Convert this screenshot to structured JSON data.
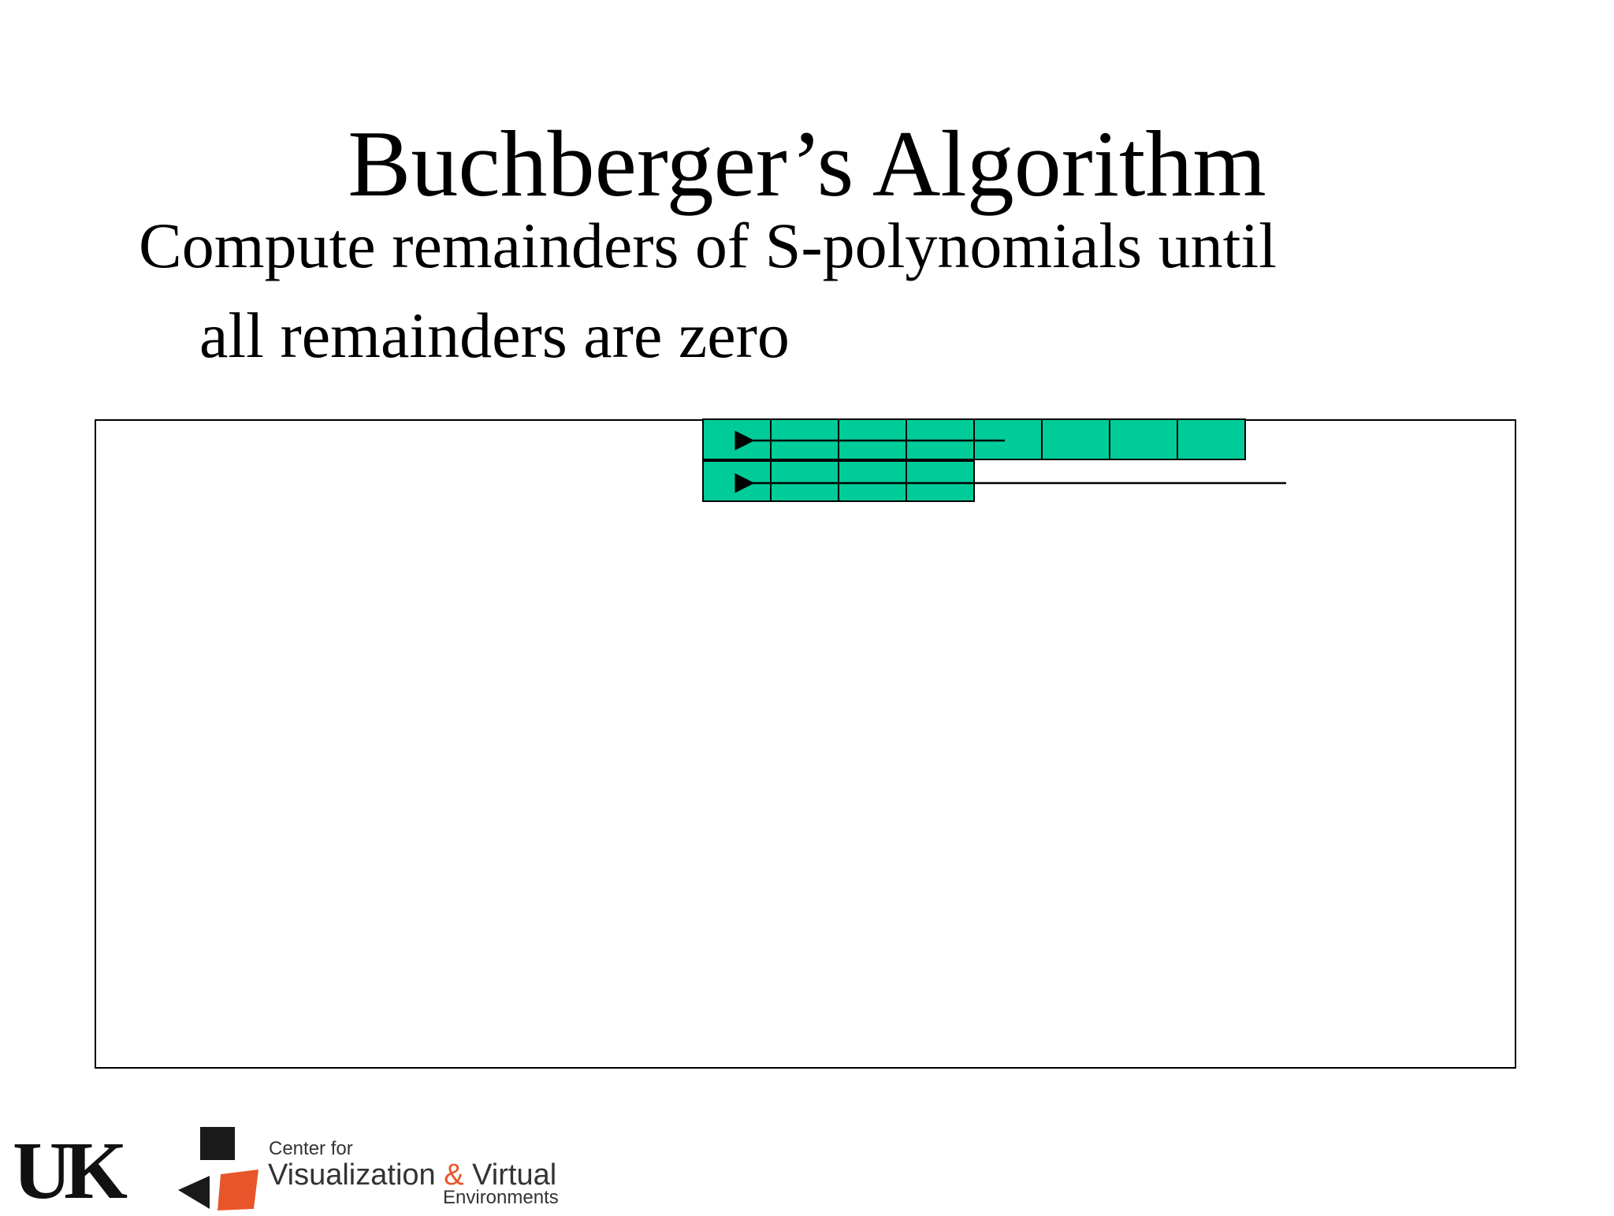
{
  "slide": {
    "title": "Buchberger’s Algorithm",
    "bullet_line_1": "Compute remainders of S-polynomials until",
    "bullet_line_2": "all remainders are zero"
  },
  "diagram": {
    "cell_fill": "#00cc99",
    "row_1_cells": 8,
    "row_2_cells": 4
  },
  "footer": {
    "uk_logo_text": "UK",
    "cvve_line_1": "Center for",
    "cvve_line_2a": "Visualization ",
    "cvve_amp": "&",
    "cvve_line_2b": " Virtual",
    "cvve_line_3": "Environments",
    "logo_accent": "#e8552a"
  }
}
